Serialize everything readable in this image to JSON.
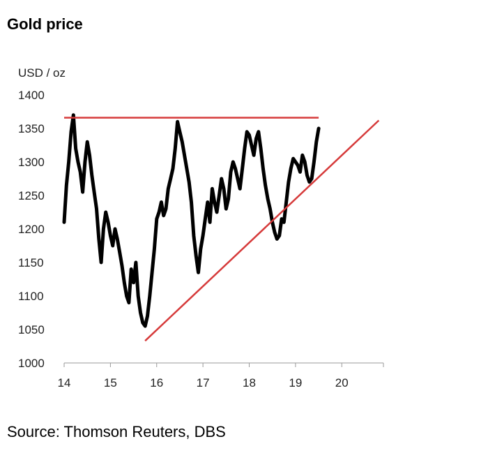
{
  "title": "Gold price",
  "source": "Source: Thomson Reuters, DBS",
  "colors": {
    "price": "#000000",
    "trend": "#d63a3a",
    "axis": "#999999"
  },
  "chart_data": {
    "type": "line",
    "title": "Gold price",
    "ylabel": "USD / oz",
    "xlabel": "",
    "xlim": [
      14,
      20.9
    ],
    "ylim": [
      1000,
      1400
    ],
    "xticks": [
      14,
      15,
      16,
      17,
      18,
      19,
      20
    ],
    "xtick_labels": [
      "14",
      "15",
      "16",
      "17",
      "18",
      "19",
      "20"
    ],
    "yticks": [
      1000,
      1050,
      1100,
      1150,
      1200,
      1250,
      1300,
      1350,
      1400
    ],
    "ytick_labels": [
      "1000",
      "1050",
      "1100",
      "1150",
      "1200",
      "1250",
      "1300",
      "1350",
      "1400"
    ],
    "grid": false,
    "series": [
      {
        "x": [
          14.0,
          14.05,
          14.1,
          14.15,
          14.2,
          14.25,
          14.3,
          14.35,
          14.4,
          14.45,
          14.5,
          14.55,
          14.6,
          14.65,
          14.7,
          14.75,
          14.8,
          14.85,
          14.9,
          14.95,
          15.0,
          15.05,
          15.1,
          15.15,
          15.2,
          15.25,
          15.3,
          15.35,
          15.4,
          15.45,
          15.5,
          15.55,
          15.6,
          15.65,
          15.7,
          15.75,
          15.8,
          15.85,
          15.9,
          15.95,
          16.0,
          16.05,
          16.1,
          16.15,
          16.2,
          16.25,
          16.3,
          16.35,
          16.4,
          16.45,
          16.5,
          16.55,
          16.6,
          16.65,
          16.7,
          16.75,
          16.8,
          16.85,
          16.9,
          16.95,
          17.0,
          17.05,
          17.1,
          17.15,
          17.2,
          17.25,
          17.3,
          17.35,
          17.4,
          17.45,
          17.5,
          17.55,
          17.6,
          17.65,
          17.7,
          17.75,
          17.8,
          17.85,
          17.9,
          17.95,
          18.0,
          18.05,
          18.1,
          18.15,
          18.2,
          18.25,
          18.3,
          18.35,
          18.4,
          18.45,
          18.5,
          18.55,
          18.6,
          18.65,
          18.7,
          18.75,
          18.8,
          18.85,
          18.9,
          18.95,
          19.0,
          19.05,
          19.1,
          19.15,
          19.2,
          19.25,
          19.3,
          19.35,
          19.4,
          19.45,
          19.5
        ],
        "y": [
          1210,
          1265,
          1300,
          1345,
          1370,
          1320,
          1300,
          1285,
          1255,
          1300,
          1330,
          1310,
          1280,
          1255,
          1230,
          1185,
          1150,
          1200,
          1225,
          1210,
          1190,
          1175,
          1200,
          1185,
          1165,
          1145,
          1120,
          1100,
          1090,
          1140,
          1120,
          1150,
          1100,
          1075,
          1060,
          1055,
          1070,
          1100,
          1135,
          1170,
          1215,
          1225,
          1240,
          1220,
          1230,
          1260,
          1275,
          1290,
          1320,
          1360,
          1345,
          1330,
          1310,
          1290,
          1270,
          1240,
          1190,
          1160,
          1135,
          1170,
          1190,
          1215,
          1240,
          1210,
          1260,
          1240,
          1225,
          1250,
          1275,
          1260,
          1230,
          1245,
          1285,
          1300,
          1290,
          1275,
          1260,
          1290,
          1320,
          1345,
          1340,
          1325,
          1310,
          1335,
          1345,
          1320,
          1290,
          1265,
          1245,
          1230,
          1210,
          1195,
          1185,
          1190,
          1215,
          1210,
          1240,
          1270,
          1290,
          1305,
          1300,
          1295,
          1285,
          1310,
          1300,
          1280,
          1270,
          1275,
          1300,
          1330,
          1350
        ]
      }
    ],
    "trendlines": [
      {
        "kind": "resistance",
        "from": [
          14.0,
          1366
        ],
        "to": [
          19.5,
          1366
        ]
      },
      {
        "kind": "support",
        "from": [
          15.75,
          1033
        ],
        "to": [
          20.8,
          1362
        ]
      }
    ]
  }
}
